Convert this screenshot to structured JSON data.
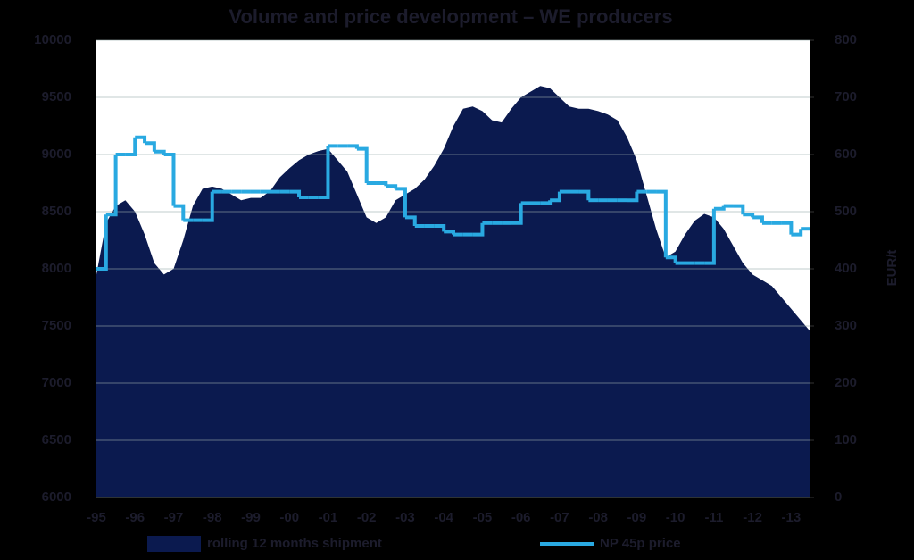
{
  "chart_data": {
    "type": "combo",
    "title": "Volume and price development – WE producers",
    "y2_label": "EUR/t",
    "categories": [
      "-95",
      null,
      null,
      null,
      "-96",
      null,
      null,
      null,
      "-97",
      null,
      null,
      null,
      "-98",
      null,
      null,
      null,
      "-99",
      null,
      null,
      null,
      "-00",
      null,
      null,
      null,
      "-01",
      null,
      null,
      null,
      "-02",
      null,
      null,
      null,
      "-03",
      null,
      null,
      null,
      "-04",
      null,
      null,
      null,
      "-05",
      null,
      null,
      null,
      "-06",
      null,
      null,
      null,
      "-07",
      null,
      null,
      null,
      "-08",
      null,
      null,
      null,
      "-09",
      null,
      null,
      null,
      "-10",
      null,
      null,
      null,
      "-11",
      null,
      null,
      null,
      "-12",
      null,
      null,
      null,
      "-13",
      null,
      null
    ],
    "series": [
      {
        "name": "rolling 12 months shipment",
        "type": "area",
        "color": "#0b1a4f",
        "values": [
          7950,
          8400,
          8550,
          8600,
          8500,
          8300,
          8050,
          7950,
          8000,
          8250,
          8550,
          8700,
          8720,
          8700,
          8650,
          8600,
          8620,
          8620,
          8680,
          8800,
          8880,
          8950,
          9000,
          9030,
          9050,
          8950,
          8850,
          8650,
          8450,
          8400,
          8450,
          8600,
          8650,
          8700,
          8780,
          8900,
          9050,
          9250,
          9400,
          9420,
          9380,
          9300,
          9280,
          9400,
          9500,
          9550,
          9600,
          9580,
          9500,
          9420,
          9400,
          9400,
          9380,
          9350,
          9300,
          9150,
          8950,
          8650,
          8350,
          8100,
          8150,
          8300,
          8420,
          8480,
          8450,
          8350,
          8200,
          8050,
          7950,
          7900,
          7850,
          7750,
          7650,
          7550,
          7450
        ]
      },
      {
        "name": "NP 45p price",
        "type": "step",
        "axis": "y2",
        "color": "#29a9e1",
        "values": [
          400,
          495,
          600,
          600,
          630,
          620,
          605,
          600,
          510,
          485,
          485,
          485,
          535,
          535,
          535,
          535,
          535,
          535,
          535,
          535,
          535,
          525,
          525,
          525,
          615,
          615,
          615,
          610,
          550,
          550,
          545,
          540,
          490,
          475,
          475,
          475,
          465,
          460,
          460,
          460,
          480,
          480,
          480,
          480,
          515,
          515,
          515,
          520,
          535,
          535,
          535,
          520,
          520,
          520,
          520,
          520,
          535,
          535,
          535,
          420,
          410,
          410,
          410,
          410,
          505,
          510,
          510,
          495,
          490,
          480,
          480,
          480,
          460,
          470,
          470
        ]
      }
    ],
    "ylim": [
      6000,
      10000
    ],
    "yticks": [
      6000,
      6500,
      7000,
      7500,
      8000,
      8500,
      9000,
      9500,
      10000
    ],
    "y2lim": [
      0,
      800
    ],
    "y2ticks": [
      0,
      100,
      200,
      300,
      400,
      500,
      600,
      700,
      800
    ],
    "grid": true
  }
}
